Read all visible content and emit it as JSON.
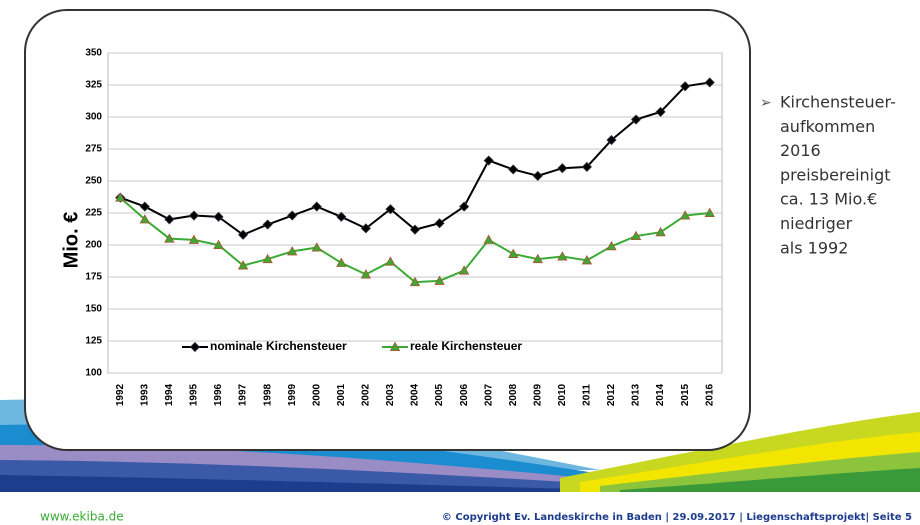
{
  "chart_data": {
    "type": "line",
    "y_label": "Mio. €",
    "categories": [
      "1992",
      "1993",
      "1994",
      "1995",
      "1996",
      "1997",
      "1998",
      "1999",
      "2000",
      "2001",
      "2002",
      "2003",
      "2004",
      "2005",
      "2006",
      "2007",
      "2008",
      "2009",
      "2010",
      "2011",
      "2012",
      "2013",
      "2014",
      "2015",
      "2016"
    ],
    "series": [
      {
        "name": "nominale Kirchensteuer",
        "color": "#000000",
        "marker": "diamond",
        "values": [
          237,
          230,
          220,
          223,
          222,
          208,
          216,
          223,
          230,
          222,
          213,
          228,
          212,
          217,
          230,
          266,
          259,
          254,
          260,
          261,
          282,
          298,
          304,
          324,
          327
        ]
      },
      {
        "name": "reale Kirchensteuer",
        "color": "#3aaa35",
        "marker": "triangle",
        "values": [
          237,
          220,
          205,
          204,
          200,
          184,
          189,
          195,
          198,
          186,
          177,
          187,
          171,
          172,
          180,
          204,
          193,
          189,
          191,
          188,
          199,
          207,
          210,
          223,
          225
        ]
      }
    ],
    "ylim": [
      100,
      350
    ],
    "yticks": [
      100,
      125,
      150,
      175,
      200,
      225,
      250,
      275,
      300,
      325,
      350
    ],
    "grid": true
  },
  "bullet": {
    "lines": [
      "Kirchensteuer-",
      "aufkommen",
      "2016",
      "preisbereinigt",
      "ca. 13 Mio.€",
      "niedriger",
      "als 1992"
    ]
  },
  "footer": {
    "left": "www.ekiba.de",
    "right": "© Copyright Ev. Landeskirche in Baden | 29.09.2017 | Liegenschaftsprojekt| Seite  5"
  }
}
